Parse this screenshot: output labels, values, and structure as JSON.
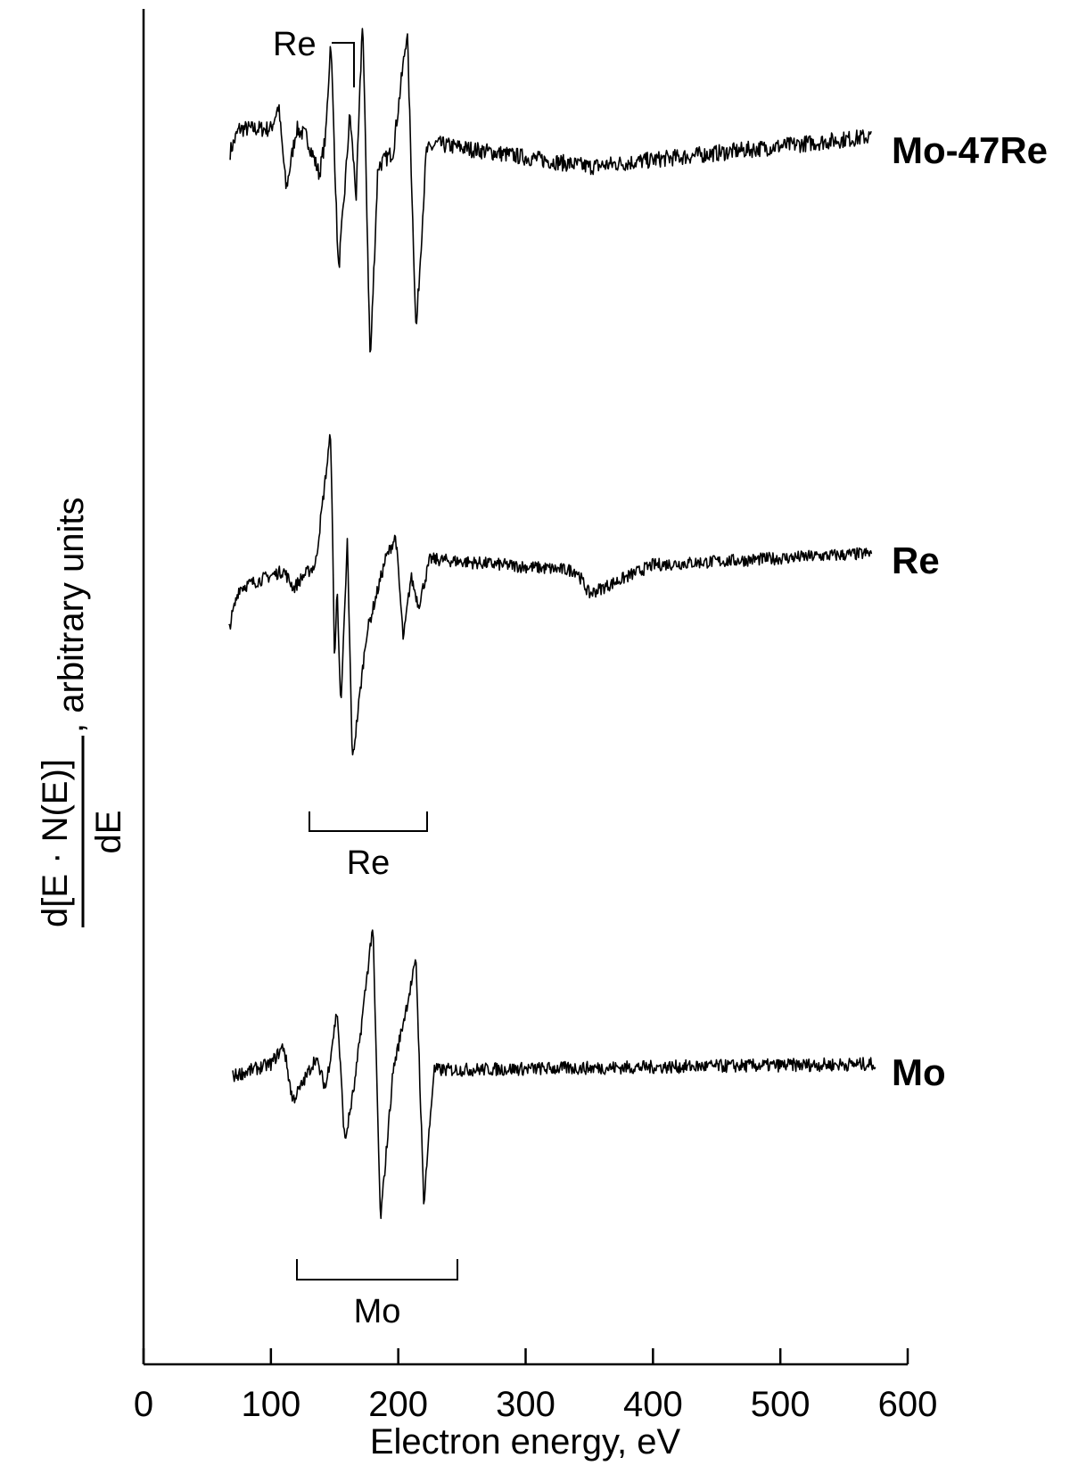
{
  "chart_data": {
    "type": "line",
    "xlabel": "Electron energy, eV",
    "ylabel": {
      "numerator": "d[E · N(E)]",
      "denominator": "dE",
      "suffix": ", arbitrary units"
    },
    "xlim": [
      0,
      600
    ],
    "xticks": [
      0,
      100,
      200,
      300,
      400,
      500,
      600
    ],
    "yticks": "none",
    "grid": false,
    "series": [
      {
        "name": "Mo-47Re",
        "x_range": [
          68,
          572
        ],
        "features": [
          {
            "x": 68,
            "y": 0.0
          },
          {
            "x": 75,
            "y": 0.3
          },
          {
            "x": 100,
            "y": 0.3
          },
          {
            "x": 106,
            "y": 0.6
          },
          {
            "x": 112,
            "y": -0.5
          },
          {
            "x": 120,
            "y": 0.3
          },
          {
            "x": 128,
            "y": 0.2
          },
          {
            "x": 138,
            "y": -0.3
          },
          {
            "x": 143,
            "y": 0.2
          },
          {
            "x": 147,
            "y": 1.5
          },
          {
            "x": 153,
            "y": -1.6
          },
          {
            "x": 158,
            "y": -0.5
          },
          {
            "x": 162,
            "y": 0.5
          },
          {
            "x": 167,
            "y": -0.6
          },
          {
            "x": 172,
            "y": 1.8
          },
          {
            "x": 178,
            "y": -2.8
          },
          {
            "x": 184,
            "y": -0.2
          },
          {
            "x": 196,
            "y": 0.0
          },
          {
            "x": 207,
            "y": 1.6
          },
          {
            "x": 214,
            "y": -2.4
          },
          {
            "x": 222,
            "y": 0.0
          },
          {
            "x": 230,
            "y": 0.1
          },
          {
            "x": 350,
            "y": -0.2
          },
          {
            "x": 572,
            "y": 0.2
          }
        ]
      },
      {
        "name": "Re",
        "x_range": [
          67,
          572
        ],
        "features": [
          {
            "x": 67,
            "y": -1.0
          },
          {
            "x": 75,
            "y": -0.3
          },
          {
            "x": 110,
            "y": 0.0
          },
          {
            "x": 118,
            "y": -0.3
          },
          {
            "x": 125,
            "y": -0.1
          },
          {
            "x": 135,
            "y": 0.1
          },
          {
            "x": 147,
            "y": 2.4
          },
          {
            "x": 150,
            "y": -1.6
          },
          {
            "x": 152,
            "y": -0.3
          },
          {
            "x": 155,
            "y": -2.4
          },
          {
            "x": 160,
            "y": 0.5
          },
          {
            "x": 164,
            "y": -3.3
          },
          {
            "x": 175,
            "y": -1.1
          },
          {
            "x": 190,
            "y": 0.2
          },
          {
            "x": 198,
            "y": 0.6
          },
          {
            "x": 204,
            "y": -1.2
          },
          {
            "x": 210,
            "y": -0.1
          },
          {
            "x": 216,
            "y": -0.6
          },
          {
            "x": 225,
            "y": 0.2
          },
          {
            "x": 340,
            "y": 0.0
          },
          {
            "x": 350,
            "y": -0.4
          },
          {
            "x": 400,
            "y": 0.1
          },
          {
            "x": 572,
            "y": 0.3
          }
        ]
      },
      {
        "name": "Mo",
        "x_range": [
          70,
          575
        ],
        "features": [
          {
            "x": 70,
            "y": -0.1
          },
          {
            "x": 100,
            "y": 0.1
          },
          {
            "x": 110,
            "y": 0.4
          },
          {
            "x": 117,
            "y": -0.5
          },
          {
            "x": 123,
            "y": -0.3
          },
          {
            "x": 135,
            "y": 0.2
          },
          {
            "x": 143,
            "y": -0.3
          },
          {
            "x": 152,
            "y": 1.0
          },
          {
            "x": 158,
            "y": -1.2
          },
          {
            "x": 166,
            "y": -0.2
          },
          {
            "x": 180,
            "y": 2.4
          },
          {
            "x": 186,
            "y": -2.5
          },
          {
            "x": 196,
            "y": 0.0
          },
          {
            "x": 214,
            "y": 1.8
          },
          {
            "x": 220,
            "y": -2.2
          },
          {
            "x": 228,
            "y": 0.0
          },
          {
            "x": 575,
            "y": 0.1
          }
        ]
      }
    ],
    "annotations": [
      {
        "text": "Re",
        "type": "marker",
        "series": "Mo-47Re",
        "x": 165
      },
      {
        "text": "Re",
        "type": "bracket",
        "series": "Re",
        "x_range": [
          130,
          222
        ]
      },
      {
        "text": "Mo",
        "type": "bracket",
        "series": "Mo",
        "x_range": [
          120,
          245
        ]
      }
    ]
  }
}
